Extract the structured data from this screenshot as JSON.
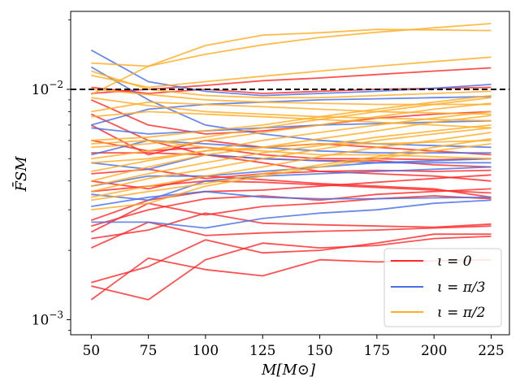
{
  "chart_data": {
    "type": "line",
    "title": "",
    "xlabel": "M[M⊙]",
    "ylabel": "F̄SM",
    "x": [
      50,
      75,
      100,
      125,
      150,
      175,
      200,
      225
    ],
    "xlim": [
      41,
      233
    ],
    "ylim": [
      0.00086,
      0.0218
    ],
    "yscale": "log",
    "xticks": [
      50,
      75,
      100,
      125,
      150,
      175,
      200,
      225
    ],
    "yticks": [
      {
        "value": 0.01,
        "base": "10",
        "exp": "−2"
      },
      {
        "value": 0.001,
        "base": "10",
        "exp": "−3"
      }
    ],
    "reference_line": {
      "y": 0.01,
      "style": "dashed",
      "color": "#000000"
    },
    "legend": {
      "position": "lower-right",
      "entries": [
        {
          "label": "ι = 0",
          "color": "#ff2a2a"
        },
        {
          "label": "ι = π/3",
          "color": "#4a6fe3"
        },
        {
          "label": "ι = π/2",
          "color": "#ffad26"
        }
      ]
    },
    "series": [
      {
        "group": "iota_0",
        "color": "#ff2a2a",
        "values": [
          0.00122,
          0.00185,
          0.00165,
          0.00155,
          0.00182,
          0.00178,
          0.0018,
          0.00182
        ]
      },
      {
        "group": "iota_0",
        "color": "#ff2a2a",
        "values": [
          0.00145,
          0.0017,
          0.00222,
          0.00195,
          0.002,
          0.00215,
          0.00235,
          0.00235
        ]
      },
      {
        "group": "iota_0",
        "color": "#ff2a2a",
        "values": [
          0.0014,
          0.00122,
          0.00182,
          0.00215,
          0.00205,
          0.0021,
          0.00225,
          0.0023
        ]
      },
      {
        "group": "iota_0",
        "color": "#ff2a2a",
        "values": [
          0.00205,
          0.00265,
          0.00232,
          0.00238,
          0.00242,
          0.00245,
          0.0025,
          0.00255
        ]
      },
      {
        "group": "iota_0",
        "color": "#ff2a2a",
        "values": [
          0.00225,
          0.00245,
          0.0029,
          0.00262,
          0.00258,
          0.00255,
          0.00252,
          0.0026
        ]
      },
      {
        "group": "iota_0",
        "color": "#ff2a2a",
        "values": [
          0.0024,
          0.0032,
          0.00285,
          0.0031,
          0.0032,
          0.00335,
          0.00345,
          0.00335
        ]
      },
      {
        "group": "iota_0",
        "color": "#ff2a2a",
        "values": [
          0.00255,
          0.003,
          0.00335,
          0.00345,
          0.0033,
          0.0035,
          0.0036,
          0.0037
        ]
      },
      {
        "group": "iota_0",
        "color": "#ff2a2a",
        "values": [
          0.0027,
          0.0033,
          0.0036,
          0.00365,
          0.0038,
          0.00395,
          0.0041,
          0.00425
        ]
      },
      {
        "group": "iota_0",
        "color": "#ff2a2a",
        "values": [
          0.0036,
          0.0038,
          0.004,
          0.00395,
          0.00385,
          0.00375,
          0.00365,
          0.00355
        ]
      },
      {
        "group": "iota_0",
        "color": "#ff2a2a",
        "values": [
          0.004,
          0.0037,
          0.0042,
          0.00405,
          0.0039,
          0.0038,
          0.0037,
          0.0034
        ]
      },
      {
        "group": "iota_0",
        "color": "#ff2a2a",
        "values": [
          0.0043,
          0.0045,
          0.0041,
          0.0043,
          0.0044,
          0.00445,
          0.0044,
          0.00445
        ]
      },
      {
        "group": "iota_0",
        "color": "#ff2a2a",
        "values": [
          0.0053,
          0.0053,
          0.0052,
          0.005,
          0.0049,
          0.0049,
          0.0047,
          0.0046
        ]
      },
      {
        "group": "iota_0",
        "color": "#ff2a2a",
        "values": [
          0.006,
          0.0054,
          0.0056,
          0.0052,
          0.005,
          0.005,
          0.00495,
          0.005
        ]
      },
      {
        "group": "iota_0",
        "color": "#ff2a2a",
        "values": [
          0.007,
          0.0052,
          0.006,
          0.0056,
          0.0058,
          0.0056,
          0.0054,
          0.0052
        ]
      },
      {
        "group": "iota_0",
        "color": "#ff2a2a",
        "values": [
          0.0078,
          0.006,
          0.0052,
          0.0048,
          0.0044,
          0.0043,
          0.0042,
          0.004
        ]
      },
      {
        "group": "iota_0",
        "color": "#ff2a2a",
        "values": [
          0.009,
          0.007,
          0.0064,
          0.0066,
          0.007,
          0.0075,
          0.0078,
          0.008
        ]
      },
      {
        "group": "iota_0",
        "color": "#ff2a2a",
        "values": [
          0.0096,
          0.01,
          0.0104,
          0.0109,
          0.0112,
          0.0116,
          0.012,
          0.0124
        ]
      },
      {
        "group": "iota_0",
        "color": "#ff2a2a",
        "values": [
          0.0102,
          0.0096,
          0.01,
          0.0096,
          0.0098,
          0.01,
          0.0101,
          0.0102
        ]
      },
      {
        "group": "iota_pi3",
        "color": "#4a6fe3",
        "values": [
          0.00265,
          0.00265,
          0.0025,
          0.00275,
          0.0029,
          0.003,
          0.0032,
          0.0033
        ]
      },
      {
        "group": "iota_pi3",
        "color": "#4a6fe3",
        "values": [
          0.0031,
          0.0034,
          0.0036,
          0.0034,
          0.00335,
          0.00335,
          0.00338,
          0.0034
        ]
      },
      {
        "group": "iota_pi3",
        "color": "#4a6fe3",
        "values": [
          0.0035,
          0.0033,
          0.004,
          0.0042,
          0.0043,
          0.0044,
          0.0045,
          0.0046
        ]
      },
      {
        "group": "iota_pi3",
        "color": "#4a6fe3",
        "values": [
          0.0038,
          0.0042,
          0.0042,
          0.0044,
          0.0046,
          0.0048,
          0.0049,
          0.005
        ]
      },
      {
        "group": "iota_pi3",
        "color": "#4a6fe3",
        "values": [
          0.0048,
          0.0045,
          0.0052,
          0.005,
          0.0049,
          0.0048,
          0.0048,
          0.0048
        ]
      },
      {
        "group": "iota_pi3",
        "color": "#4a6fe3",
        "values": [
          0.0052,
          0.006,
          0.0058,
          0.0056,
          0.0054,
          0.0053,
          0.0053,
          0.0053
        ]
      },
      {
        "group": "iota_pi3",
        "color": "#4a6fe3",
        "values": [
          0.0068,
          0.0064,
          0.0066,
          0.0068,
          0.007,
          0.0071,
          0.0072,
          0.0073
        ]
      },
      {
        "group": "iota_pi3",
        "color": "#4a6fe3",
        "values": [
          0.007,
          0.0082,
          0.0086,
          0.0088,
          0.009,
          0.0091,
          0.0092,
          0.0093
        ]
      },
      {
        "group": "iota_pi3",
        "color": "#4a6fe3",
        "values": [
          0.0125,
          0.009,
          0.007,
          0.0064,
          0.006,
          0.0058,
          0.0057,
          0.0056
        ]
      },
      {
        "group": "iota_pi3",
        "color": "#4a6fe3",
        "values": [
          0.0148,
          0.0108,
          0.0098,
          0.0094,
          0.0096,
          0.0098,
          0.0101,
          0.0105
        ]
      },
      {
        "group": "iota_pi2",
        "color": "#ffad26",
        "values": [
          0.003,
          0.0032,
          0.0038,
          0.0042,
          0.0046,
          0.005,
          0.0054,
          0.0058
        ]
      },
      {
        "group": "iota_pi2",
        "color": "#ffad26",
        "values": [
          0.0033,
          0.0036,
          0.0039,
          0.0043,
          0.0047,
          0.0051,
          0.0056,
          0.0061
        ]
      },
      {
        "group": "iota_pi2",
        "color": "#ffad26",
        "values": [
          0.0034,
          0.0038,
          0.0042,
          0.0046,
          0.0051,
          0.0056,
          0.006,
          0.0065
        ]
      },
      {
        "group": "iota_pi2",
        "color": "#ffad26",
        "values": [
          0.0036,
          0.0041,
          0.0045,
          0.005,
          0.0055,
          0.006,
          0.0064,
          0.0068
        ]
      },
      {
        "group": "iota_pi2",
        "color": "#ffad26",
        "values": [
          0.0038,
          0.0043,
          0.0048,
          0.0053,
          0.0057,
          0.0062,
          0.0066,
          0.007
        ]
      },
      {
        "group": "iota_pi2",
        "color": "#ffad26",
        "values": [
          0.004,
          0.0046,
          0.0052,
          0.0056,
          0.0061,
          0.0066,
          0.0072,
          0.0077
        ]
      },
      {
        "group": "iota_pi2",
        "color": "#ffad26",
        "values": [
          0.0044,
          0.0049,
          0.0054,
          0.006,
          0.0065,
          0.007,
          0.0075,
          0.008
        ]
      },
      {
        "group": "iota_pi2",
        "color": "#ffad26",
        "values": [
          0.005,
          0.0054,
          0.006,
          0.0065,
          0.007,
          0.0076,
          0.0082,
          0.0087
        ]
      },
      {
        "group": "iota_pi2",
        "color": "#ffad26",
        "values": [
          0.0056,
          0.0058,
          0.0062,
          0.0068,
          0.0074,
          0.008,
          0.0086,
          0.0092
        ]
      },
      {
        "group": "iota_pi2",
        "color": "#ffad26",
        "values": [
          0.006,
          0.0062,
          0.0066,
          0.007,
          0.0076,
          0.0082,
          0.0088,
          0.0094
        ]
      },
      {
        "group": "iota_pi2",
        "color": "#ffad26",
        "values": [
          0.0076,
          0.008,
          0.0078,
          0.0076,
          0.0074,
          0.0072,
          0.007,
          0.0068
        ]
      },
      {
        "group": "iota_pi2",
        "color": "#ffad26",
        "values": [
          0.008,
          0.0088,
          0.0086,
          0.0084,
          0.0082,
          0.008,
          0.0079,
          0.0078
        ]
      },
      {
        "group": "iota_pi2",
        "color": "#ffad26",
        "values": [
          0.0092,
          0.0085,
          0.008,
          0.0078,
          0.0076,
          0.0075,
          0.0074,
          0.0073
        ]
      },
      {
        "group": "iota_pi2",
        "color": "#ffad26",
        "values": [
          0.01,
          0.0095,
          0.009,
          0.0088,
          0.0087,
          0.0086,
          0.0086,
          0.0086
        ]
      },
      {
        "group": "iota_pi2",
        "color": "#ffad26",
        "values": [
          0.0115,
          0.0102,
          0.0108,
          0.0114,
          0.012,
          0.0126,
          0.0132,
          0.0138
        ]
      },
      {
        "group": "iota_pi2",
        "color": "#ffad26",
        "values": [
          0.012,
          0.01,
          0.0094,
          0.0092,
          0.0092,
          0.0094,
          0.0096,
          0.0098
        ]
      },
      {
        "group": "iota_pi2",
        "color": "#ffad26",
        "values": [
          0.013,
          0.0126,
          0.0142,
          0.0156,
          0.0168,
          0.0177,
          0.0185,
          0.0193
        ]
      },
      {
        "group": "iota_pi2",
        "color": "#ffad26",
        "values": [
          0.0095,
          0.0126,
          0.0155,
          0.0172,
          0.0176,
          0.0182,
          0.0181,
          0.018
        ]
      },
      {
        "group": "iota_pi2",
        "color": "#ffad26",
        "values": [
          0.0058,
          0.006,
          0.0056,
          0.0054,
          0.0052,
          0.0052,
          0.0051,
          0.005
        ]
      },
      {
        "group": "iota_pi2",
        "color": "#ffad26",
        "values": [
          0.0048,
          0.005,
          0.0054,
          0.0056,
          0.0058,
          0.0058,
          0.0059,
          0.006
        ]
      }
    ]
  }
}
